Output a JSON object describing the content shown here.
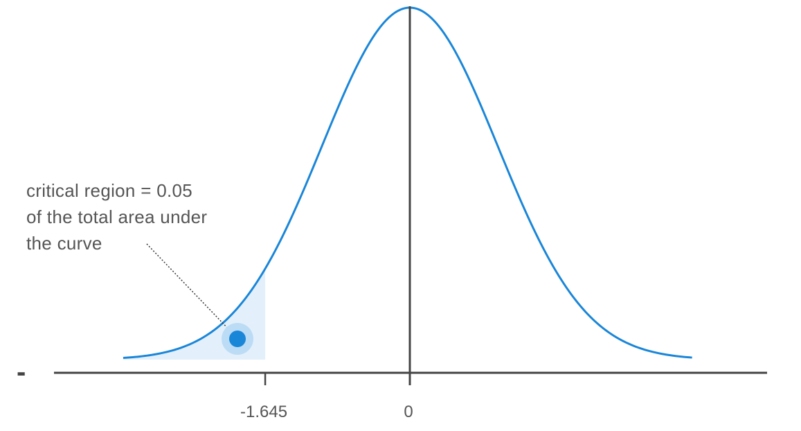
{
  "chart_data": {
    "type": "area",
    "distribution": "standard normal",
    "x_ticks": [
      {
        "value": -1.645,
        "label": "-1.645"
      },
      {
        "value": 0,
        "label": "0"
      }
    ],
    "shaded_region": {
      "from": "-inf",
      "to": -1.645,
      "area": 0.05
    },
    "annotation_lines": [
      "critical region = 0.05",
      "of the total area under",
      "the curve"
    ],
    "edge_mark": "-"
  },
  "colors": {
    "curve": "#1a86d8",
    "shade": "#e3f0fb",
    "marker": "#1a86d8",
    "marker_halo": "#bcdcf5",
    "axis": "#444444",
    "text": "#555555"
  }
}
